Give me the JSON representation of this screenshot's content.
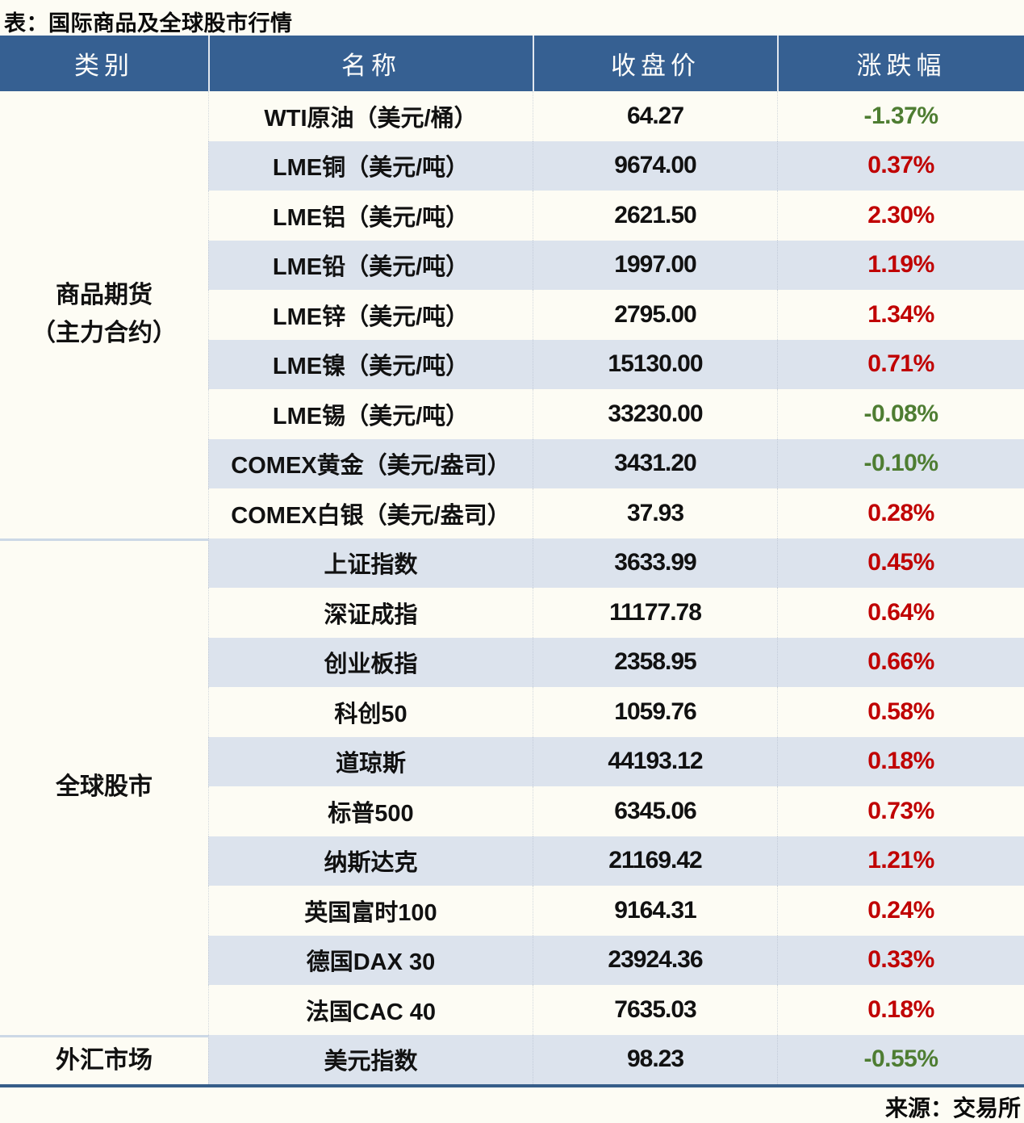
{
  "title": "表：国际商品及全球股市行情",
  "source": "来源：交易所",
  "columns": [
    "类别",
    "名称",
    "收盘价",
    "涨跌幅"
  ],
  "colors": {
    "header_bg": "#366092",
    "row_light": "#fdfcf4",
    "row_stripe": "#dce3ed",
    "up_red": "#c00000",
    "down_green": "#4e7d32",
    "bottom_line": "#365d89",
    "group_divider": "#ccd8e6"
  },
  "groups": [
    {
      "category": [
        "商品期货",
        "（主力合约）"
      ],
      "rows": [
        {
          "name": "WTI原油（美元/桶）",
          "close": "64.27",
          "change": "-1.37%"
        },
        {
          "name": "LME铜（美元/吨）",
          "close": "9674.00",
          "change": "0.37%"
        },
        {
          "name": "LME铝（美元/吨）",
          "close": "2621.50",
          "change": "2.30%"
        },
        {
          "name": "LME铅（美元/吨）",
          "close": "1997.00",
          "change": "1.19%"
        },
        {
          "name": "LME锌（美元/吨）",
          "close": "2795.00",
          "change": "1.34%"
        },
        {
          "name": "LME镍（美元/吨）",
          "close": "15130.00",
          "change": "0.71%"
        },
        {
          "name": "LME锡（美元/吨）",
          "close": "33230.00",
          "change": "-0.08%"
        },
        {
          "name": "COMEX黄金（美元/盎司）",
          "close": "3431.20",
          "change": "-0.10%"
        },
        {
          "name": "COMEX白银（美元/盎司）",
          "close": "37.93",
          "change": "0.28%"
        }
      ]
    },
    {
      "category": [
        "全球股市"
      ],
      "rows": [
        {
          "name": "上证指数",
          "close": "3633.99",
          "change": "0.45%"
        },
        {
          "name": "深证成指",
          "close": "11177.78",
          "change": "0.64%"
        },
        {
          "name": "创业板指",
          "close": "2358.95",
          "change": "0.66%"
        },
        {
          "name": "科创50",
          "close": "1059.76",
          "change": "0.58%"
        },
        {
          "name": "道琼斯",
          "close": "44193.12",
          "change": "0.18%"
        },
        {
          "name": "标普500",
          "close": "6345.06",
          "change": "0.73%"
        },
        {
          "name": "纳斯达克",
          "close": "21169.42",
          "change": "1.21%"
        },
        {
          "name": "英国富时100",
          "close": "9164.31",
          "change": "0.24%"
        },
        {
          "name": "德国DAX 30",
          "close": "23924.36",
          "change": "0.33%"
        },
        {
          "name": "法国CAC 40",
          "close": "7635.03",
          "change": "0.18%"
        }
      ]
    },
    {
      "category": [
        "外汇市场"
      ],
      "rows": [
        {
          "name": "美元指数",
          "close": "98.23",
          "change": "-0.55%"
        }
      ]
    }
  ],
  "chart_data": {
    "type": "table",
    "title": "表：国际商品及全球股市行情",
    "columns": [
      "类别",
      "名称",
      "收盘价",
      "涨跌幅"
    ],
    "rows": [
      [
        "商品期货（主力合约）",
        "WTI原油（美元/桶）",
        64.27,
        "-1.37%"
      ],
      [
        "商品期货（主力合约）",
        "LME铜（美元/吨）",
        9674.0,
        "0.37%"
      ],
      [
        "商品期货（主力合约）",
        "LME铝（美元/吨）",
        2621.5,
        "2.30%"
      ],
      [
        "商品期货（主力合约）",
        "LME铅（美元/吨）",
        1997.0,
        "1.19%"
      ],
      [
        "商品期货（主力合约）",
        "LME锌（美元/吨）",
        2795.0,
        "1.34%"
      ],
      [
        "商品期货（主力合约）",
        "LME镍（美元/吨）",
        15130.0,
        "0.71%"
      ],
      [
        "商品期货（主力合约）",
        "LME锡（美元/吨）",
        33230.0,
        "-0.08%"
      ],
      [
        "商品期货（主力合约）",
        "COMEX黄金（美元/盎司）",
        3431.2,
        "-0.10%"
      ],
      [
        "商品期货（主力合约）",
        "COMEX白银（美元/盎司）",
        37.93,
        "0.28%"
      ],
      [
        "全球股市",
        "上证指数",
        3633.99,
        "0.45%"
      ],
      [
        "全球股市",
        "深证成指",
        11177.78,
        "0.64%"
      ],
      [
        "全球股市",
        "创业板指",
        2358.95,
        "0.66%"
      ],
      [
        "全球股市",
        "科创50",
        1059.76,
        "0.58%"
      ],
      [
        "全球股市",
        "道琼斯",
        44193.12,
        "0.18%"
      ],
      [
        "全球股市",
        "标普500",
        6345.06,
        "0.73%"
      ],
      [
        "全球股市",
        "纳斯达克",
        21169.42,
        "1.21%"
      ],
      [
        "全球股市",
        "英国富时100",
        9164.31,
        "0.24%"
      ],
      [
        "全球股市",
        "德国DAX 30",
        23924.36,
        "0.33%"
      ],
      [
        "全球股市",
        "法国CAC 40",
        7635.03,
        "0.18%"
      ],
      [
        "外汇市场",
        "美元指数",
        98.23,
        "-0.55%"
      ]
    ],
    "legend_colors": {
      "positive_change": "#c00000",
      "negative_change": "#4e7d32"
    },
    "source": "来源：交易所"
  }
}
